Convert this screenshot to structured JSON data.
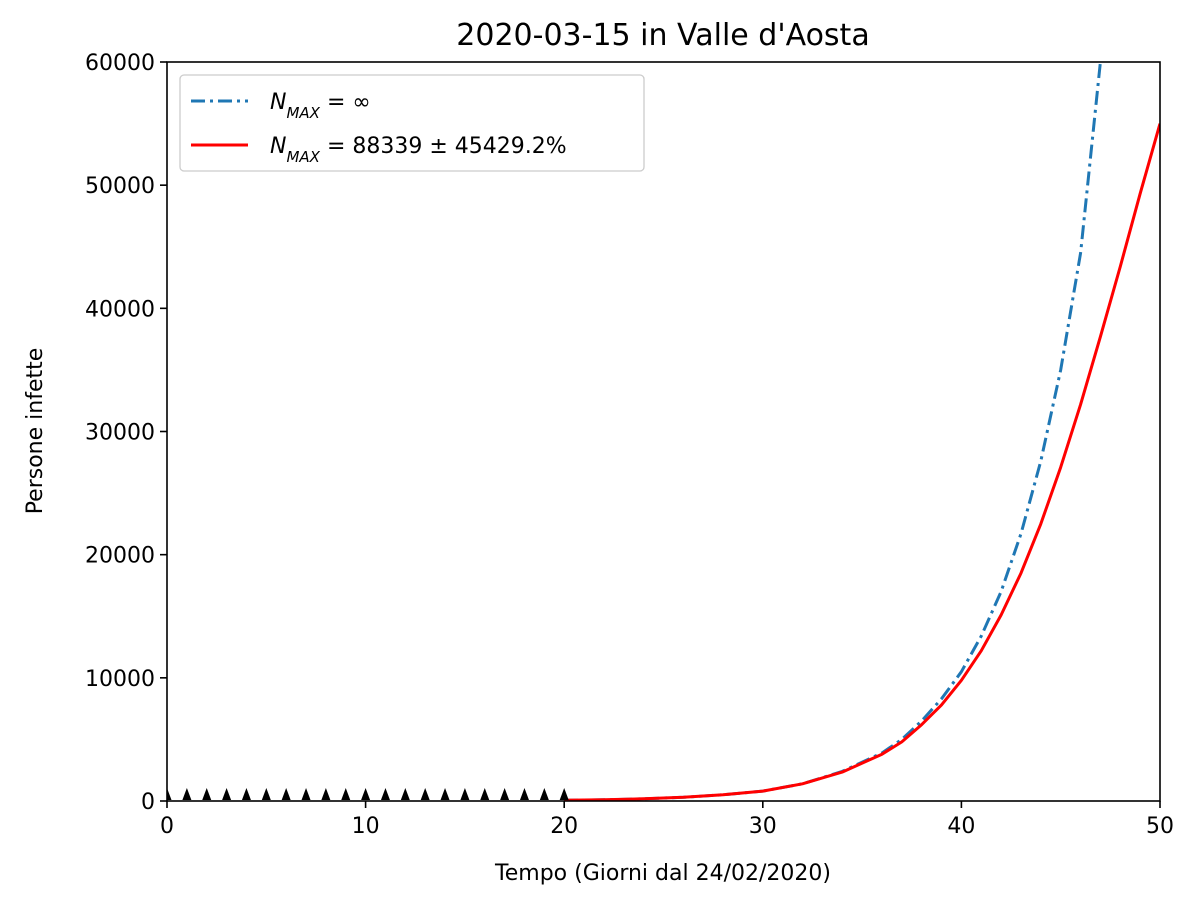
{
  "chart_data": {
    "type": "line",
    "title": "2020-03-15 in Valle d'Aosta",
    "xlabel": "Tempo (Giorni dal 24/02/2020)",
    "ylabel": "Persone infette",
    "xlim": [
      0,
      50
    ],
    "ylim": [
      0,
      60000
    ],
    "xticks": [
      "0",
      "10",
      "20",
      "30",
      "40",
      "50"
    ],
    "yticks": [
      "0",
      "10000",
      "20000",
      "30000",
      "40000",
      "50000",
      "60000"
    ],
    "legend_position": "top-left",
    "grid": false,
    "legend": {
      "series1_sub": "MAX",
      "series1_rhs": " = ∞",
      "series2_sub": "MAX",
      "series2_rhs": " = 88339 ± 45429.2%"
    },
    "series": [
      {
        "style": "dash-dot",
        "color": "#1f77b4",
        "x": [
          20,
          22,
          24,
          26,
          28,
          30,
          32,
          34,
          36,
          37,
          38,
          39,
          40,
          41,
          42,
          43,
          44,
          45,
          46,
          47
        ],
        "y": [
          60,
          100,
          180,
          300,
          500,
          800,
          1400,
          2400,
          3900,
          5000,
          6500,
          8300,
          10500,
          13400,
          17000,
          21700,
          27600,
          35000,
          44500,
          60000
        ]
      },
      {
        "style": "solid",
        "color": "#ff0000",
        "x": [
          20,
          22,
          24,
          26,
          28,
          30,
          32,
          34,
          36,
          37,
          38,
          39,
          40,
          41,
          42,
          43,
          44,
          45,
          46,
          47,
          48,
          49,
          50
        ],
        "y": [
          60,
          100,
          180,
          300,
          500,
          800,
          1400,
          2350,
          3800,
          4800,
          6200,
          7800,
          9800,
          12200,
          15100,
          18500,
          22500,
          27100,
          32200,
          37700,
          43400,
          49300,
          55000
        ]
      },
      {
        "style": "markers",
        "marker": "triangle-up",
        "color": "#000000",
        "x": [
          0,
          1,
          2,
          3,
          4,
          5,
          6,
          7,
          8,
          9,
          10,
          11,
          12,
          13,
          14,
          15,
          16,
          17,
          18,
          19,
          20
        ],
        "y": [
          0,
          0,
          0,
          0,
          0,
          0,
          0,
          0,
          0,
          0,
          0,
          0,
          0,
          0,
          0,
          0,
          0,
          0,
          0,
          0,
          0
        ]
      }
    ]
  }
}
